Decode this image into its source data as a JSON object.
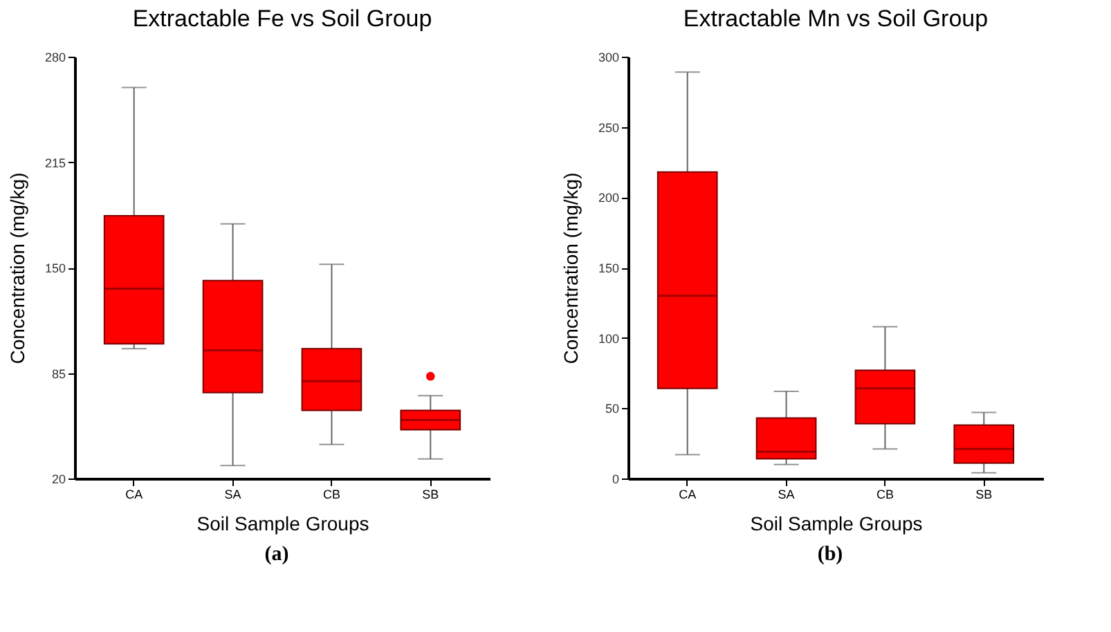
{
  "chart_data": [
    {
      "type": "box",
      "title": "Extractable Fe vs Soil Group",
      "xlabel": "Soil Sample Groups",
      "ylabel": "Concentration (mg/kg)",
      "categories": [
        "CA",
        "SA",
        "CB",
        "SB"
      ],
      "ylim": [
        20,
        280
      ],
      "yticks": [
        20,
        85,
        150,
        215,
        280
      ],
      "annotations": [
        "(a)"
      ],
      "series": [
        {
          "color": "#ff0000",
          "boxes": [
            {
              "low": 100,
              "q1": 103,
              "median": 137,
              "q3": 182,
              "high": 261
            },
            {
              "low": 28,
              "q1": 73,
              "median": 99,
              "q3": 142,
              "high": 177
            },
            {
              "low": 41,
              "q1": 62,
              "median": 80,
              "q3": 100,
              "high": 152
            },
            {
              "low": 32,
              "q1": 50,
              "median": 56,
              "q3": 62,
              "high": 71,
              "outliers": [
                83
              ]
            }
          ]
        }
      ]
    },
    {
      "type": "box",
      "title": "Extractable Mn vs Soil Group",
      "xlabel": "Soil Sample Groups",
      "ylabel": "Concentration (mg/kg)",
      "categories": [
        "CA",
        "SA",
        "CB",
        "SB"
      ],
      "ylim": [
        0,
        300
      ],
      "yticks": [
        0,
        50,
        100,
        150,
        200,
        250,
        300
      ],
      "annotations": [
        "(b)"
      ],
      "series": [
        {
          "color": "#ff0000",
          "boxes": [
            {
              "low": 17,
              "q1": 64,
              "median": 130,
              "q3": 218,
              "high": 289
            },
            {
              "low": 10,
              "q1": 14,
              "median": 19,
              "q3": 43,
              "high": 62
            },
            {
              "low": 21,
              "q1": 39,
              "median": 64,
              "q3": 77,
              "high": 108
            },
            {
              "low": 4,
              "q1": 11,
              "median": 21,
              "q3": 38,
              "high": 47
            }
          ]
        }
      ]
    }
  ]
}
